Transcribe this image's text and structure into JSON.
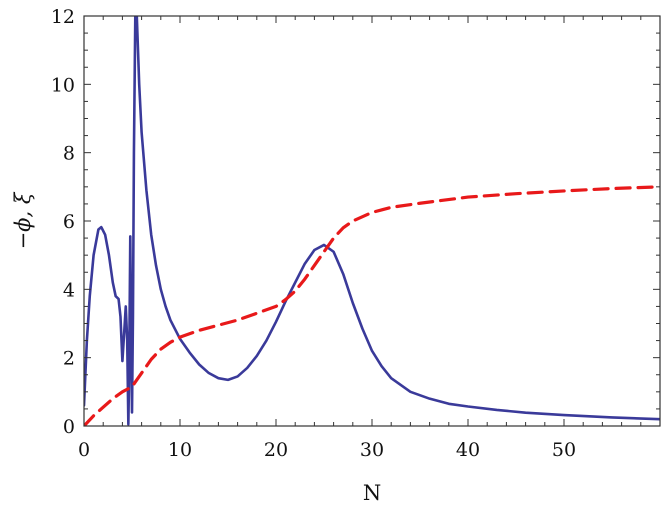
{
  "chart_data": {
    "type": "line",
    "title": "",
    "xlabel": "N",
    "ylabel": "−ϕ, ξ",
    "xlim": [
      0,
      60
    ],
    "ylim": [
      0,
      12
    ],
    "x_ticks": [
      0,
      10,
      20,
      30,
      40,
      50
    ],
    "y_ticks": [
      0,
      2,
      4,
      6,
      8,
      10,
      12
    ],
    "x_tick_labels": [
      "0",
      "10",
      "20",
      "30",
      "40",
      "50"
    ],
    "y_tick_labels": [
      "0",
      "2",
      "4",
      "6",
      "8",
      "10",
      "12"
    ],
    "grid": false,
    "legend": "none",
    "series": [
      {
        "style": "solid",
        "color": "#3a3a9a",
        "points": [
          [
            0,
            0.6
          ],
          [
            0.3,
            2.5
          ],
          [
            0.6,
            3.8
          ],
          [
            1.0,
            5.0
          ],
          [
            1.5,
            5.75
          ],
          [
            1.8,
            5.82
          ],
          [
            2.2,
            5.6
          ],
          [
            2.6,
            5.0
          ],
          [
            3.0,
            4.2
          ],
          [
            3.3,
            3.8
          ],
          [
            3.6,
            3.72
          ],
          [
            3.8,
            3.2
          ],
          [
            4.0,
            1.9
          ],
          [
            4.2,
            2.8
          ],
          [
            4.35,
            3.5
          ],
          [
            4.5,
            2.5
          ],
          [
            4.62,
            0.05
          ],
          [
            4.7,
            1.5
          ],
          [
            4.82,
            5.55
          ],
          [
            4.9,
            3.0
          ],
          [
            5.0,
            0.4
          ],
          [
            5.1,
            3.2
          ],
          [
            5.2,
            8.0
          ],
          [
            5.35,
            12.2
          ],
          [
            5.5,
            12.0
          ],
          [
            5.75,
            10.0
          ],
          [
            6.0,
            8.6
          ],
          [
            6.5,
            6.9
          ],
          [
            7.0,
            5.6
          ],
          [
            7.5,
            4.7
          ],
          [
            8.0,
            4.0
          ],
          [
            8.5,
            3.5
          ],
          [
            9.0,
            3.1
          ],
          [
            10.0,
            2.55
          ],
          [
            11.0,
            2.15
          ],
          [
            12.0,
            1.8
          ],
          [
            13.0,
            1.55
          ],
          [
            14.0,
            1.4
          ],
          [
            15.0,
            1.35
          ],
          [
            16.0,
            1.45
          ],
          [
            17.0,
            1.7
          ],
          [
            18.0,
            2.05
          ],
          [
            19.0,
            2.5
          ],
          [
            20.0,
            3.05
          ],
          [
            21.0,
            3.65
          ],
          [
            22.0,
            4.2
          ],
          [
            23.0,
            4.75
          ],
          [
            24.0,
            5.15
          ],
          [
            25.0,
            5.3
          ],
          [
            26.0,
            5.1
          ],
          [
            27.0,
            4.45
          ],
          [
            28.0,
            3.6
          ],
          [
            29.0,
            2.85
          ],
          [
            30.0,
            2.2
          ],
          [
            31.0,
            1.75
          ],
          [
            32.0,
            1.4
          ],
          [
            34.0,
            1.0
          ],
          [
            36.0,
            0.8
          ],
          [
            38.0,
            0.65
          ],
          [
            40.0,
            0.57
          ],
          [
            43.0,
            0.47
          ],
          [
            46.0,
            0.39
          ],
          [
            50.0,
            0.32
          ],
          [
            55.0,
            0.25
          ],
          [
            60.0,
            0.2
          ]
        ]
      },
      {
        "style": "dashed",
        "color": "#e8191a",
        "points": [
          [
            0,
            0
          ],
          [
            1,
            0.3
          ],
          [
            2,
            0.55
          ],
          [
            3,
            0.8
          ],
          [
            4,
            1.0
          ],
          [
            5,
            1.15
          ],
          [
            6,
            1.55
          ],
          [
            7,
            1.95
          ],
          [
            8,
            2.25
          ],
          [
            9,
            2.45
          ],
          [
            10,
            2.6
          ],
          [
            12,
            2.8
          ],
          [
            14,
            2.95
          ],
          [
            16,
            3.1
          ],
          [
            18,
            3.3
          ],
          [
            20,
            3.5
          ],
          [
            21,
            3.7
          ],
          [
            22,
            3.95
          ],
          [
            23,
            4.3
          ],
          [
            24,
            4.7
          ],
          [
            25,
            5.1
          ],
          [
            26,
            5.5
          ],
          [
            27,
            5.8
          ],
          [
            28,
            6.0
          ],
          [
            30,
            6.25
          ],
          [
            32,
            6.4
          ],
          [
            35,
            6.52
          ],
          [
            40,
            6.7
          ],
          [
            45,
            6.8
          ],
          [
            50,
            6.88
          ],
          [
            55,
            6.95
          ],
          [
            60,
            7.0
          ]
        ]
      }
    ]
  }
}
